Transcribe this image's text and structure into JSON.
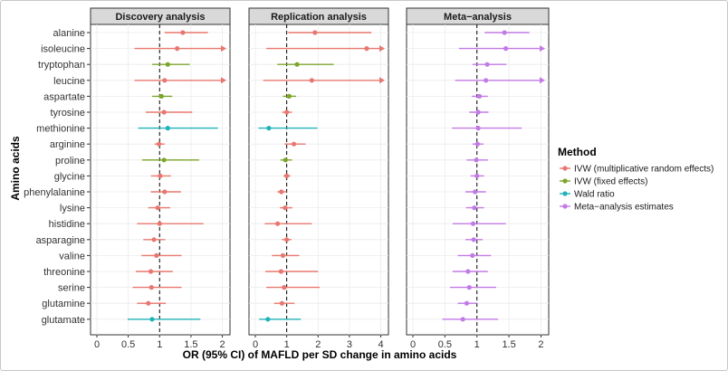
{
  "chart_data": {
    "type": "forest",
    "xlabel": "OR (95% CI) of MAFLD per SD change in amino acids",
    "ylabel": "Amino acids",
    "reference_line": 1,
    "categories": [
      "alanine",
      "isoleucine",
      "tryptophan",
      "leucine",
      "aspartate",
      "tyrosine",
      "methionine",
      "arginine",
      "proline",
      "glycine",
      "phenylalanine",
      "lysine",
      "histidine",
      "asparagine",
      "valine",
      "threonine",
      "serine",
      "glutamine",
      "glutamate"
    ],
    "panels": [
      {
        "title": "Discovery analysis",
        "xlim": [
          0,
          2.05
        ],
        "xticks": [
          "0",
          "0.5",
          "1",
          "1.5",
          "2"
        ],
        "xtick_values": [
          0,
          0.5,
          1,
          1.5,
          2
        ],
        "rows": [
          {
            "amino": "alanine",
            "method": "IVW (multiplicative random effects)",
            "or": 1.37,
            "lo": 1.08,
            "hi": 1.77
          },
          {
            "amino": "isoleucine",
            "method": "IVW (multiplicative random effects)",
            "or": 1.28,
            "lo": 0.6,
            "hi": 2.05,
            "arrow": true
          },
          {
            "amino": "tryptophan",
            "method": "IVW (fixed effects)",
            "or": 1.13,
            "lo": 0.88,
            "hi": 1.48
          },
          {
            "amino": "leucine",
            "method": "IVW (multiplicative random effects)",
            "or": 1.08,
            "lo": 0.6,
            "hi": 2.05,
            "arrow": true
          },
          {
            "amino": "aspartate",
            "method": "IVW (fixed effects)",
            "or": 1.03,
            "lo": 0.88,
            "hi": 1.2
          },
          {
            "amino": "tyrosine",
            "method": "IVW (multiplicative random effects)",
            "or": 1.07,
            "lo": 0.78,
            "hi": 1.52
          },
          {
            "amino": "methionine",
            "method": "Wald ratio",
            "or": 1.13,
            "lo": 0.66,
            "hi": 1.93
          },
          {
            "amino": "arginine",
            "method": "IVW (multiplicative random effects)",
            "or": 0.99,
            "lo": 0.92,
            "hi": 1.08
          },
          {
            "amino": "proline",
            "method": "IVW (fixed effects)",
            "or": 1.07,
            "lo": 0.72,
            "hi": 1.63
          },
          {
            "amino": "glycine",
            "method": "IVW (multiplicative random effects)",
            "or": 1.01,
            "lo": 0.86,
            "hi": 1.18
          },
          {
            "amino": "phenylalanine",
            "method": "IVW (multiplicative random effects)",
            "or": 1.08,
            "lo": 0.86,
            "hi": 1.34
          },
          {
            "amino": "lysine",
            "method": "IVW (multiplicative random effects)",
            "or": 0.97,
            "lo": 0.82,
            "hi": 1.17
          },
          {
            "amino": "histidine",
            "method": "IVW (multiplicative random effects)",
            "or": 1.0,
            "lo": 0.64,
            "hi": 1.7
          },
          {
            "amino": "asparagine",
            "method": "IVW (multiplicative random effects)",
            "or": 0.91,
            "lo": 0.74,
            "hi": 1.09
          },
          {
            "amino": "valine",
            "method": "IVW (multiplicative random effects)",
            "or": 0.95,
            "lo": 0.71,
            "hi": 1.35
          },
          {
            "amino": "threonine",
            "method": "IVW (multiplicative random effects)",
            "or": 0.86,
            "lo": 0.62,
            "hi": 1.21
          },
          {
            "amino": "serine",
            "method": "IVW (multiplicative random effects)",
            "or": 0.87,
            "lo": 0.57,
            "hi": 1.35
          },
          {
            "amino": "glutamine",
            "method": "IVW (multiplicative random effects)",
            "or": 0.82,
            "lo": 0.64,
            "hi": 1.1
          },
          {
            "amino": "glutamate",
            "method": "Wald ratio",
            "or": 0.88,
            "lo": 0.49,
            "hi": 1.65
          }
        ]
      },
      {
        "title": "Replication analysis",
        "xlim": [
          0,
          4.1
        ],
        "xticks": [
          "0",
          "1",
          "2",
          "3",
          "4"
        ],
        "xtick_values": [
          0,
          1,
          2,
          3,
          4
        ],
        "rows": [
          {
            "amino": "alanine",
            "method": "IVW (multiplicative random effects)",
            "or": 1.9,
            "lo": 1.05,
            "hi": 3.7
          },
          {
            "amino": "isoleucine",
            "method": "IVW (multiplicative random effects)",
            "or": 3.55,
            "lo": 0.35,
            "hi": 4.1,
            "arrow": true
          },
          {
            "amino": "tryptophan",
            "method": "IVW (fixed effects)",
            "or": 1.33,
            "lo": 0.7,
            "hi": 2.5
          },
          {
            "amino": "leucine",
            "method": "IVW (multiplicative random effects)",
            "or": 1.8,
            "lo": 0.25,
            "hi": 4.1,
            "arrow": true
          },
          {
            "amino": "aspartate",
            "method": "IVW (fixed effects)",
            "or": 1.08,
            "lo": 0.88,
            "hi": 1.3
          },
          {
            "amino": "tyrosine",
            "method": "IVW (multiplicative random effects)",
            "or": 1.0,
            "lo": 0.85,
            "hi": 1.17
          },
          {
            "amino": "methionine",
            "method": "Wald ratio",
            "or": 0.43,
            "lo": 0.1,
            "hi": 1.98
          },
          {
            "amino": "arginine",
            "method": "IVW (multiplicative random effects)",
            "or": 1.23,
            "lo": 0.93,
            "hi": 1.6
          },
          {
            "amino": "proline",
            "method": "IVW (fixed effects)",
            "or": 0.96,
            "lo": 0.8,
            "hi": 1.17
          },
          {
            "amino": "glycine",
            "method": "IVW (multiplicative random effects)",
            "or": 1.0,
            "lo": 0.9,
            "hi": 1.12
          },
          {
            "amino": "phenylalanine",
            "method": "IVW (multiplicative random effects)",
            "or": 0.83,
            "lo": 0.7,
            "hi": 1.0
          },
          {
            "amino": "lysine",
            "method": "IVW (multiplicative random effects)",
            "or": 0.95,
            "lo": 0.78,
            "hi": 1.18
          },
          {
            "amino": "histidine",
            "method": "IVW (multiplicative random effects)",
            "or": 0.71,
            "lo": 0.3,
            "hi": 1.8
          },
          {
            "amino": "asparagine",
            "method": "IVW (multiplicative random effects)",
            "or": 1.0,
            "lo": 0.85,
            "hi": 1.15
          },
          {
            "amino": "valine",
            "method": "IVW (multiplicative random effects)",
            "or": 0.88,
            "lo": 0.53,
            "hi": 1.4
          },
          {
            "amino": "threonine",
            "method": "IVW (multiplicative random effects)",
            "or": 0.82,
            "lo": 0.32,
            "hi": 2.0
          },
          {
            "amino": "serine",
            "method": "IVW (multiplicative random effects)",
            "or": 0.92,
            "lo": 0.35,
            "hi": 2.05
          },
          {
            "amino": "glutamine",
            "method": "IVW (multiplicative random effects)",
            "or": 0.85,
            "lo": 0.6,
            "hi": 1.25
          },
          {
            "amino": "glutamate",
            "method": "Wald ratio",
            "or": 0.4,
            "lo": 0.12,
            "hi": 1.45
          }
        ]
      },
      {
        "title": "Meta−analysis",
        "xlim": [
          0,
          2.05
        ],
        "xticks": [
          "0",
          "0.5",
          "1",
          "1.5",
          "2"
        ],
        "xtick_values": [
          0,
          0.5,
          1,
          1.5,
          2
        ],
        "rows": [
          {
            "amino": "alanine",
            "method": "Meta−analysis estimates",
            "or": 1.43,
            "lo": 1.12,
            "hi": 1.82
          },
          {
            "amino": "isoleucine",
            "method": "Meta−analysis estimates",
            "or": 1.45,
            "lo": 0.72,
            "hi": 2.05,
            "arrow": true
          },
          {
            "amino": "tryptophan",
            "method": "Meta−analysis estimates",
            "or": 1.16,
            "lo": 0.93,
            "hi": 1.46
          },
          {
            "amino": "leucine",
            "method": "Meta−analysis estimates",
            "or": 1.14,
            "lo": 0.66,
            "hi": 2.05,
            "arrow": true
          },
          {
            "amino": "aspartate",
            "method": "Meta−analysis estimates",
            "or": 1.04,
            "lo": 0.92,
            "hi": 1.17
          },
          {
            "amino": "tyrosine",
            "method": "Meta−analysis estimates",
            "or": 1.02,
            "lo": 0.88,
            "hi": 1.18
          },
          {
            "amino": "methionine",
            "method": "Meta−analysis estimates",
            "or": 1.02,
            "lo": 0.61,
            "hi": 1.7
          },
          {
            "amino": "arginine",
            "method": "Meta−analysis estimates",
            "or": 1.01,
            "lo": 0.93,
            "hi": 1.1
          },
          {
            "amino": "proline",
            "method": "Meta−analysis estimates",
            "or": 0.99,
            "lo": 0.84,
            "hi": 1.17
          },
          {
            "amino": "glycine",
            "method": "Meta−analysis estimates",
            "or": 1.0,
            "lo": 0.9,
            "hi": 1.11
          },
          {
            "amino": "phenylalanine",
            "method": "Meta−analysis estimates",
            "or": 0.97,
            "lo": 0.82,
            "hi": 1.14
          },
          {
            "amino": "lysine",
            "method": "Meta−analysis estimates",
            "or": 0.96,
            "lo": 0.83,
            "hi": 1.11
          },
          {
            "amino": "histidine",
            "method": "Meta−analysis estimates",
            "or": 0.94,
            "lo": 0.62,
            "hi": 1.45
          },
          {
            "amino": "asparagine",
            "method": "Meta−analysis estimates",
            "or": 0.95,
            "lo": 0.82,
            "hi": 1.09
          },
          {
            "amino": "valine",
            "method": "Meta−analysis estimates",
            "or": 0.93,
            "lo": 0.7,
            "hi": 1.22
          },
          {
            "amino": "threonine",
            "method": "Meta−analysis estimates",
            "or": 0.86,
            "lo": 0.62,
            "hi": 1.17
          },
          {
            "amino": "serine",
            "method": "Meta−analysis estimates",
            "or": 0.88,
            "lo": 0.58,
            "hi": 1.3
          },
          {
            "amino": "glutamine",
            "method": "Meta−analysis estimates",
            "or": 0.84,
            "lo": 0.7,
            "hi": 1.0
          },
          {
            "amino": "glutamate",
            "method": "Meta−analysis estimates",
            "or": 0.78,
            "lo": 0.46,
            "hi": 1.33
          }
        ]
      }
    ],
    "legend": {
      "title": "Method",
      "position": "right",
      "items": [
        {
          "label": "IVW (multiplicative random effects)",
          "color": "#e8776f"
        },
        {
          "label": "IVW (fixed effects)",
          "color": "#7ca52b"
        },
        {
          "label": "Wald ratio",
          "color": "#1fb2b8"
        },
        {
          "label": "Meta−analysis estimates",
          "color": "#c27ae6"
        }
      ]
    },
    "grid": true
  }
}
